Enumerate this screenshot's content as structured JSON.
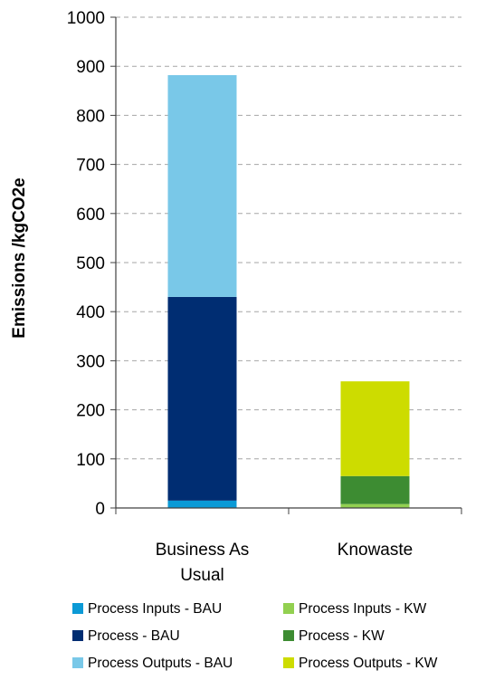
{
  "chart_data": {
    "type": "bar",
    "stacked": true,
    "categories": [
      [
        "Business As",
        "Usual"
      ],
      [
        "Knowaste"
      ]
    ],
    "series": [
      {
        "name": "Process Inputs - BAU",
        "color": "#0b9ad6",
        "values": [
          15,
          0
        ]
      },
      {
        "name": "Process - BAU",
        "color": "#002d72",
        "values": [
          415,
          0
        ]
      },
      {
        "name": "Process Outputs - BAU",
        "color": "#79c8e8",
        "values": [
          452,
          0
        ]
      },
      {
        "name": "Process Inputs - KW",
        "color": "#92d050",
        "values": [
          0,
          8
        ]
      },
      {
        "name": "Process - KW",
        "color": "#3d8c32",
        "values": [
          0,
          57
        ]
      },
      {
        "name": "Process Outputs - KW",
        "color": "#cddc00",
        "values": [
          0,
          193
        ]
      }
    ],
    "title": "",
    "xlabel": "",
    "ylabel": "Emissions /kgCO2e",
    "ylim": [
      0,
      1000
    ],
    "yticks": [
      0,
      100,
      200,
      300,
      400,
      500,
      600,
      700,
      800,
      900,
      1000
    ],
    "grid": "horizontal dashed",
    "legend_placement": "bottom",
    "legend_columns": 2
  }
}
